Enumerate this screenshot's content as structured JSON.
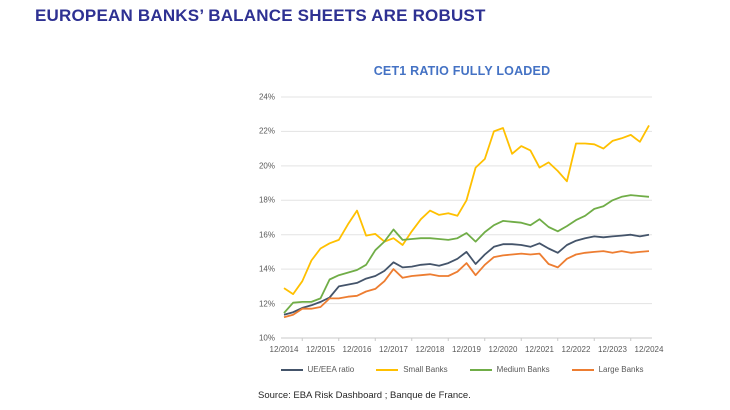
{
  "header": {
    "title": "EUROPEAN BANKS’ BALANCE SHEETS ARE ROBUST",
    "title_color": "#2E3192"
  },
  "source": {
    "text": "Source: EBA Risk Dashboard ; Banque de France."
  },
  "chart_data": {
    "type": "line",
    "title": "CET1 RATIO FULLY LOADED",
    "title_color": "#4472C4",
    "x_frequency": "quarterly",
    "x_tick_labels": [
      "12/2014",
      "12/2015",
      "12/2016",
      "12/2017",
      "12/2018",
      "12/2019",
      "12/2020",
      "12/2021",
      "12/2022",
      "12/2023",
      "12/2024"
    ],
    "points_per_year": 4,
    "ylim": [
      10,
      24
    ],
    "y_tick_step": 2,
    "y_tick_suffix": "%",
    "grid": true,
    "legend_position": "bottom",
    "series": [
      {
        "name": "UE/EEA ratio",
        "color": "#44546A",
        "values": [
          11.35,
          11.5,
          11.75,
          11.9,
          12.1,
          12.35,
          13.0,
          13.1,
          13.2,
          13.45,
          13.6,
          13.9,
          14.4,
          14.1,
          14.15,
          14.25,
          14.3,
          14.2,
          14.35,
          14.6,
          15.0,
          14.3,
          14.85,
          15.3,
          15.45,
          15.45,
          15.4,
          15.3,
          15.5,
          15.2,
          14.95,
          15.4,
          15.65,
          15.8,
          15.9,
          15.85,
          15.9,
          15.95,
          16.0,
          15.9,
          16.0
        ]
      },
      {
        "name": "Small Banks",
        "color": "#FFC000",
        "values": [
          12.9,
          12.55,
          13.3,
          14.5,
          15.2,
          15.5,
          15.7,
          16.6,
          17.4,
          15.95,
          16.05,
          15.6,
          15.8,
          15.4,
          16.2,
          16.9,
          17.4,
          17.15,
          17.25,
          17.1,
          18.0,
          19.9,
          20.4,
          22.0,
          22.2,
          20.7,
          21.15,
          20.9,
          19.9,
          20.2,
          19.7,
          19.1,
          21.3,
          21.3,
          21.25,
          21.0,
          21.45,
          21.6,
          21.8,
          21.4,
          22.35
        ]
      },
      {
        "name": "Medium Banks",
        "color": "#70AD47",
        "values": [
          11.45,
          12.05,
          12.1,
          12.1,
          12.3,
          13.4,
          13.65,
          13.8,
          13.95,
          14.25,
          15.1,
          15.6,
          16.3,
          15.7,
          15.75,
          15.8,
          15.8,
          15.75,
          15.7,
          15.8,
          16.1,
          15.6,
          16.15,
          16.55,
          16.8,
          16.75,
          16.7,
          16.55,
          16.9,
          16.45,
          16.2,
          16.5,
          16.85,
          17.1,
          17.5,
          17.65,
          18.0,
          18.2,
          18.3,
          18.25,
          18.2
        ]
      },
      {
        "name": "Large Banks",
        "color": "#ED7D31",
        "values": [
          11.2,
          11.35,
          11.7,
          11.7,
          11.8,
          12.3,
          12.3,
          12.4,
          12.45,
          12.7,
          12.85,
          13.3,
          14.0,
          13.5,
          13.6,
          13.65,
          13.7,
          13.6,
          13.6,
          13.85,
          14.35,
          13.65,
          14.25,
          14.7,
          14.8,
          14.85,
          14.9,
          14.85,
          14.9,
          14.3,
          14.1,
          14.6,
          14.85,
          14.95,
          15.0,
          15.05,
          14.95,
          15.05,
          14.95,
          15.0,
          15.05
        ]
      }
    ]
  }
}
